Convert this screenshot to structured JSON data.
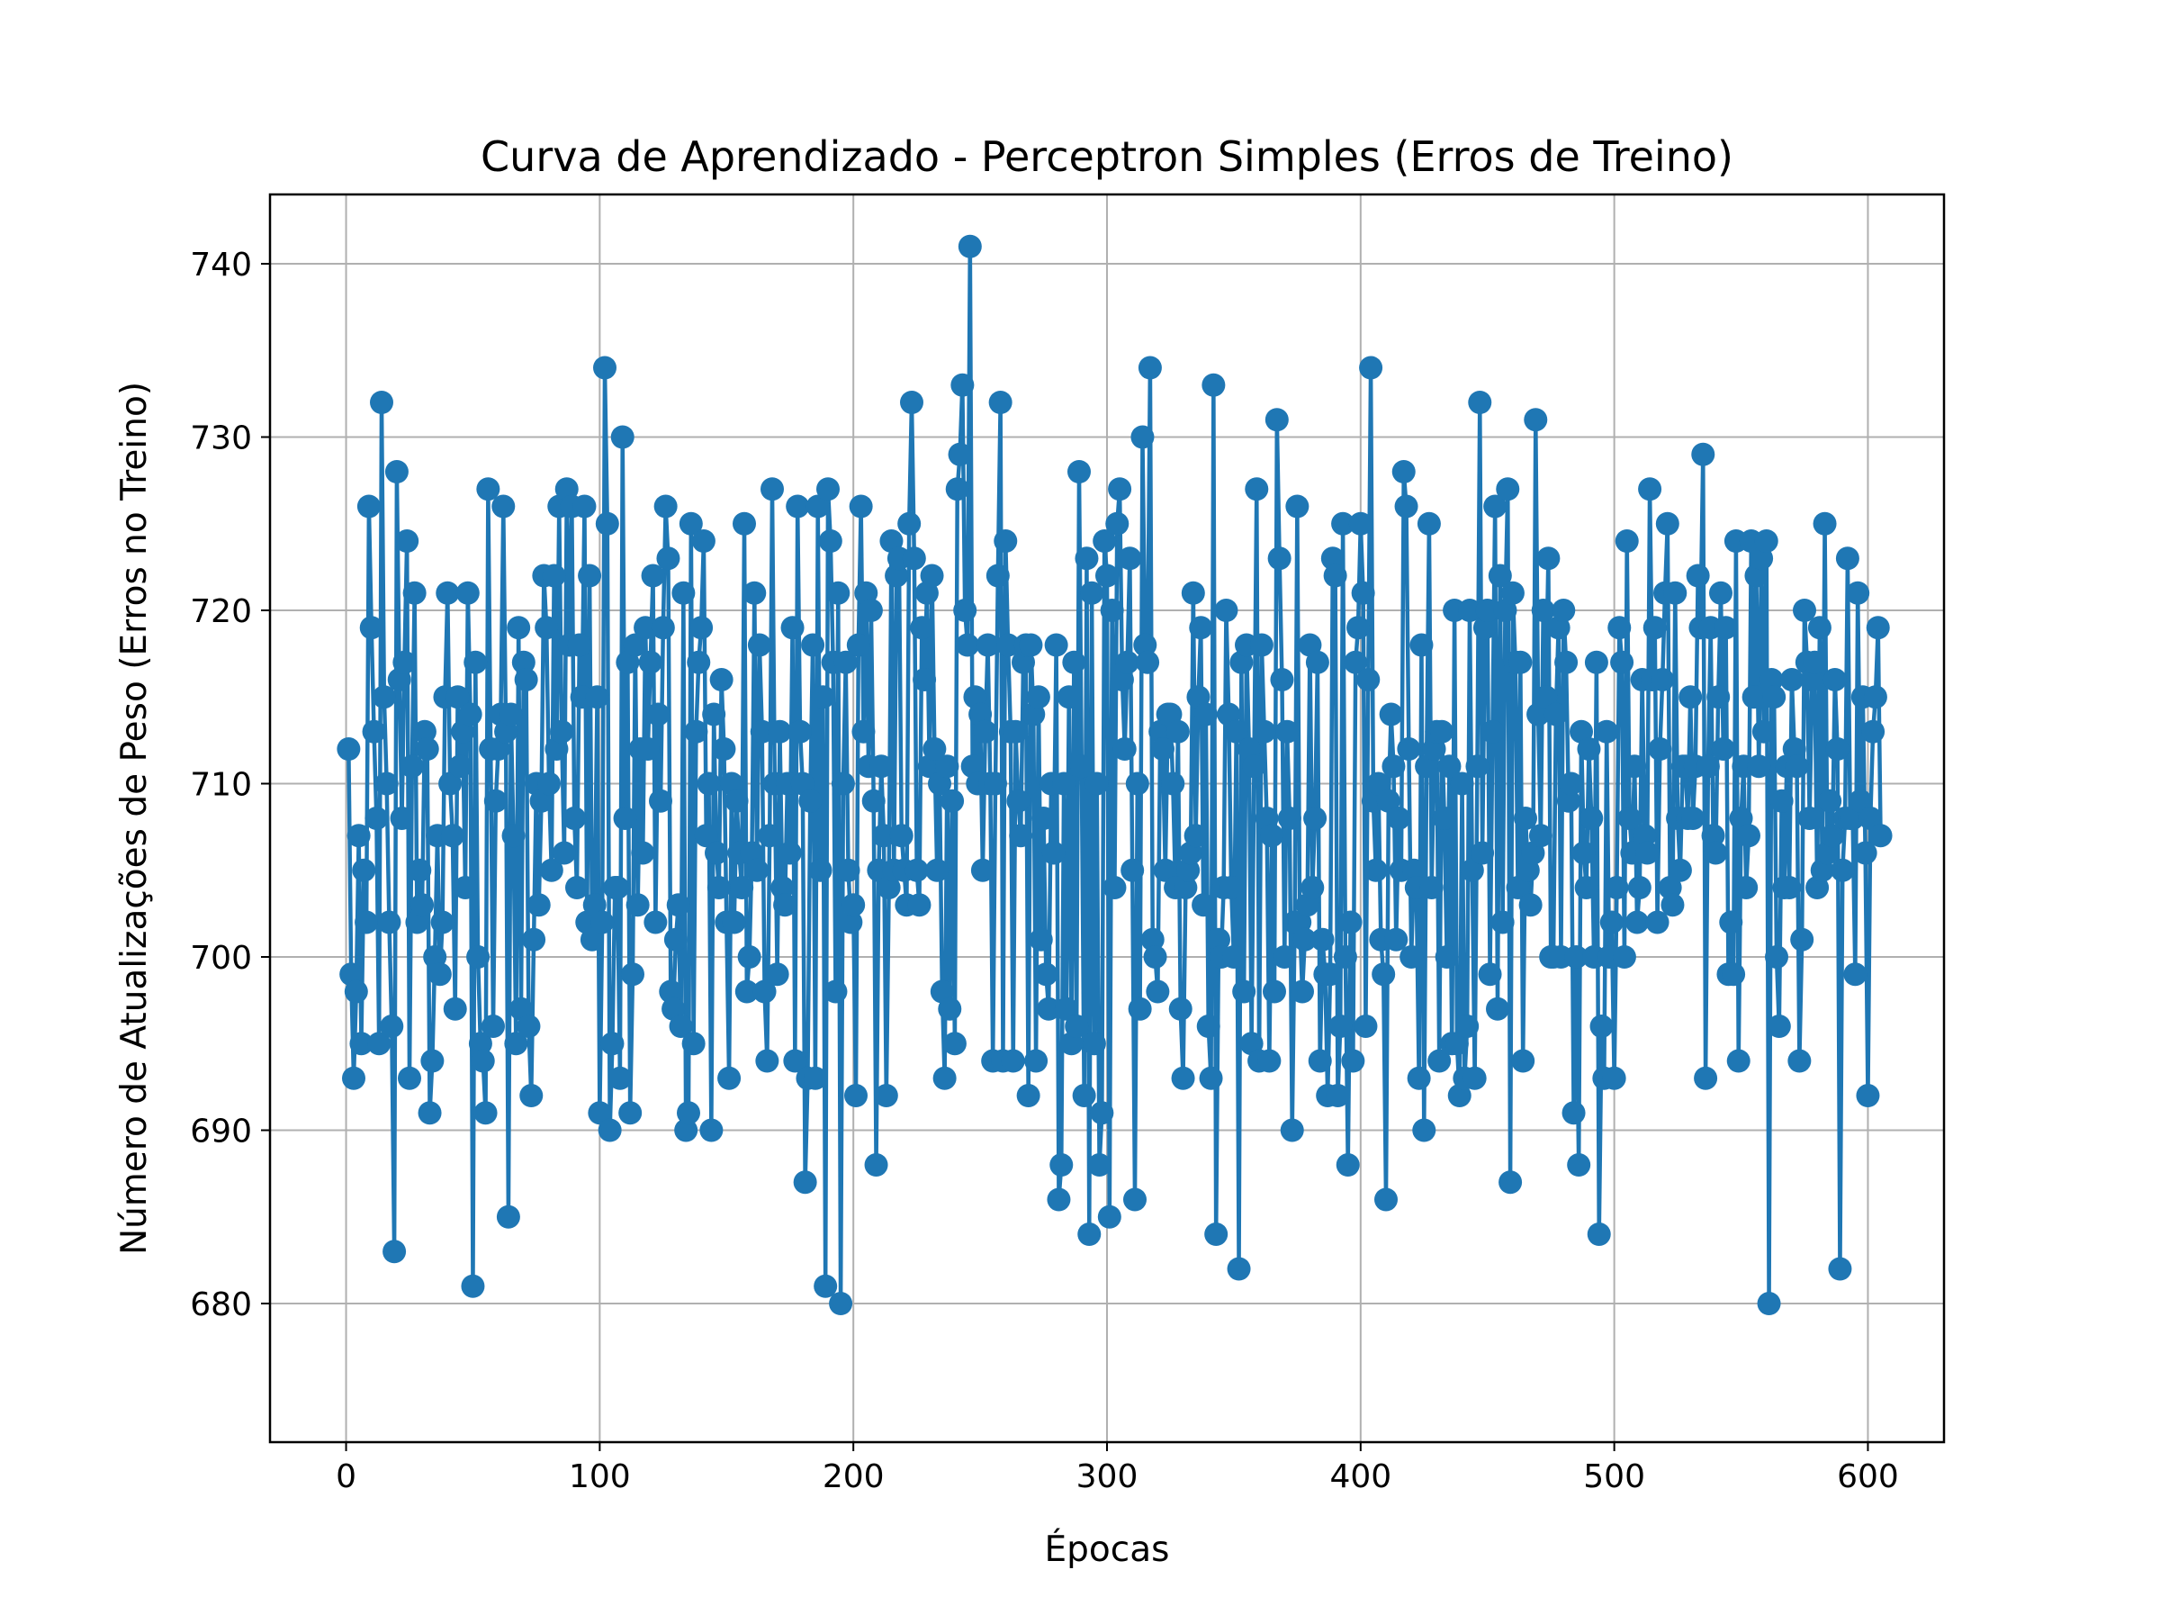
{
  "chart_data": {
    "type": "line",
    "title": "Curva de Aprendizado - Perceptron Simples (Erros de Treino)",
    "xlabel": "Épocas",
    "ylabel": "Número de Atualizações de Peso (Erros no Treino)",
    "xlim": [
      -30,
      630
    ],
    "ylim": [
      672,
      744
    ],
    "xticks": [
      0,
      100,
      200,
      300,
      400,
      500,
      600
    ],
    "yticks": [
      680,
      690,
      700,
      710,
      720,
      730,
      740
    ],
    "grid": true,
    "marker": "circle",
    "series": [
      {
        "color": "#1f77b4",
        "x_start": 1,
        "values": [
          712,
          699,
          693,
          698,
          707,
          695,
          705,
          702,
          726,
          719,
          713,
          708,
          695,
          732,
          715,
          710,
          702,
          696,
          683,
          728,
          716,
          708,
          717,
          724,
          693,
          711,
          721,
          702,
          705,
          703,
          713,
          712,
          691,
          694,
          700,
          707,
          699,
          702,
          715,
          721,
          710,
          707,
          697,
          715,
          711,
          713,
          704,
          721,
          714,
          681,
          717,
          700,
          695,
          694,
          691,
          727,
          712,
          696,
          709,
          712,
          714,
          726,
          713,
          685,
          714,
          707,
          695,
          719,
          697,
          717,
          716,
          696,
          692,
          701,
          710,
          703,
          709,
          722,
          719,
          710,
          705,
          722,
          712,
          726,
          713,
          706,
          727,
          718,
          726,
          708,
          704,
          718,
          715,
          726,
          702,
          722,
          701,
          703,
          715,
          691,
          702,
          734,
          725,
          690,
          695,
          704,
          704,
          693,
          730,
          708,
          717,
          691,
          699,
          718,
          703,
          712,
          706,
          719,
          712,
          717,
          722,
          702,
          714,
          709,
          719,
          726,
          723,
          698,
          697,
          701,
          703,
          696,
          721,
          690,
          691,
          725,
          695,
          713,
          717,
          719,
          724,
          707,
          710,
          690,
          714,
          706,
          704,
          716,
          712,
          702,
          693,
          710,
          702,
          709,
          706,
          704,
          725,
          698,
          700,
          706,
          721,
          705,
          718,
          713,
          698,
          694,
          707,
          727,
          710,
          699,
          713,
          704,
          703,
          710,
          706,
          719,
          694,
          726,
          713,
          710,
          687,
          693,
          709,
          718,
          693,
          726,
          705,
          715,
          681,
          727,
          724,
          717,
          698,
          721,
          680,
          710,
          717,
          705,
          702,
          703,
          692,
          718,
          726,
          713,
          721,
          711,
          720,
          709,
          688,
          705,
          711,
          707,
          692,
          704,
          724,
          705,
          722,
          723,
          707,
          705,
          703,
          725,
          732,
          723,
          705,
          703,
          719,
          716,
          721,
          711,
          722,
          712,
          705,
          710,
          698,
          693,
          711,
          697,
          709,
          695,
          727,
          729,
          733,
          720,
          718,
          741,
          711,
          715,
          710,
          714,
          705,
          713,
          718,
          710,
          694,
          710,
          722,
          732,
          694,
          724,
          718,
          713,
          694,
          713,
          709,
          707,
          717,
          718,
          692,
          718,
          714,
          694,
          715,
          701,
          708,
          699,
          697,
          710,
          706,
          718,
          686,
          688,
          710,
          697,
          715,
          695,
          717,
          696,
          728,
          711,
          692,
          723,
          684,
          721,
          695,
          710,
          688,
          691,
          724,
          722,
          685,
          720,
          704,
          725,
          727,
          716,
          712,
          717,
          723,
          705,
          686,
          710,
          697,
          730,
          718,
          717,
          734,
          701,
          700,
          698,
          713,
          712,
          705,
          714,
          714,
          710,
          704,
          713,
          697,
          693,
          704,
          705,
          706,
          721,
          707,
          715,
          719,
          703,
          714,
          696,
          693,
          733,
          684,
          701,
          700,
          704,
          720,
          714,
          704,
          700,
          713,
          682,
          717,
          698,
          718,
          712,
          695,
          711,
          727,
          694,
          718,
          713,
          708,
          694,
          707,
          698,
          731,
          723,
          716,
          700,
          713,
          708,
          690,
          702,
          726,
          702,
          698,
          701,
          703,
          718,
          704,
          708,
          717,
          694,
          701,
          699,
          692,
          699,
          723,
          722,
          692,
          696,
          725,
          700,
          688,
          702,
          694,
          717,
          719,
          725,
          721,
          696,
          716,
          734,
          709,
          705,
          710,
          701,
          699,
          686,
          709,
          714,
          711,
          701,
          708,
          705,
          728,
          726,
          712,
          700,
          705,
          704,
          693,
          718,
          690,
          711,
          725,
          704,
          712,
          713,
          694,
          713,
          708,
          700,
          711,
          695,
          720,
          695,
          692,
          710,
          693,
          696,
          720,
          705,
          693,
          711,
          732,
          706,
          719,
          720,
          699,
          713,
          726,
          697,
          722,
          702,
          720,
          727,
          687,
          721,
          717,
          704,
          717,
          694,
          708,
          705,
          703,
          706,
          731,
          714,
          707,
          720,
          715,
          723,
          700,
          700,
          714,
          719,
          700,
          720,
          717,
          709,
          710,
          691,
          700,
          688,
          713,
          706,
          704,
          712,
          708,
          700,
          717,
          684,
          696,
          693,
          713,
          700,
          702,
          693,
          704,
          719,
          717,
          700,
          724,
          708,
          706,
          711,
          702,
          704,
          716,
          707,
          706,
          727,
          716,
          719,
          702,
          712,
          716,
          721,
          725,
          704,
          703,
          721,
          708,
          705,
          711,
          711,
          708,
          715,
          708,
          711,
          722,
          719,
          729,
          693,
          711,
          719,
          707,
          706,
          715,
          721,
          712,
          719,
          699,
          702,
          699,
          724,
          694,
          708,
          711,
          704,
          707,
          724,
          715,
          722,
          711,
          723,
          713,
          724,
          680,
          716,
          715,
          700,
          696,
          709,
          704,
          711,
          704,
          716,
          712,
          711,
          694,
          701,
          720,
          717,
          708,
          716,
          717,
          704,
          719,
          705,
          725,
          706,
          709,
          707,
          716,
          712,
          682,
          705,
          708,
          723,
          708,
          708,
          699,
          721,
          709,
          715,
          706,
          692,
          708,
          713,
          715,
          719,
          707
        ]
      }
    ]
  }
}
